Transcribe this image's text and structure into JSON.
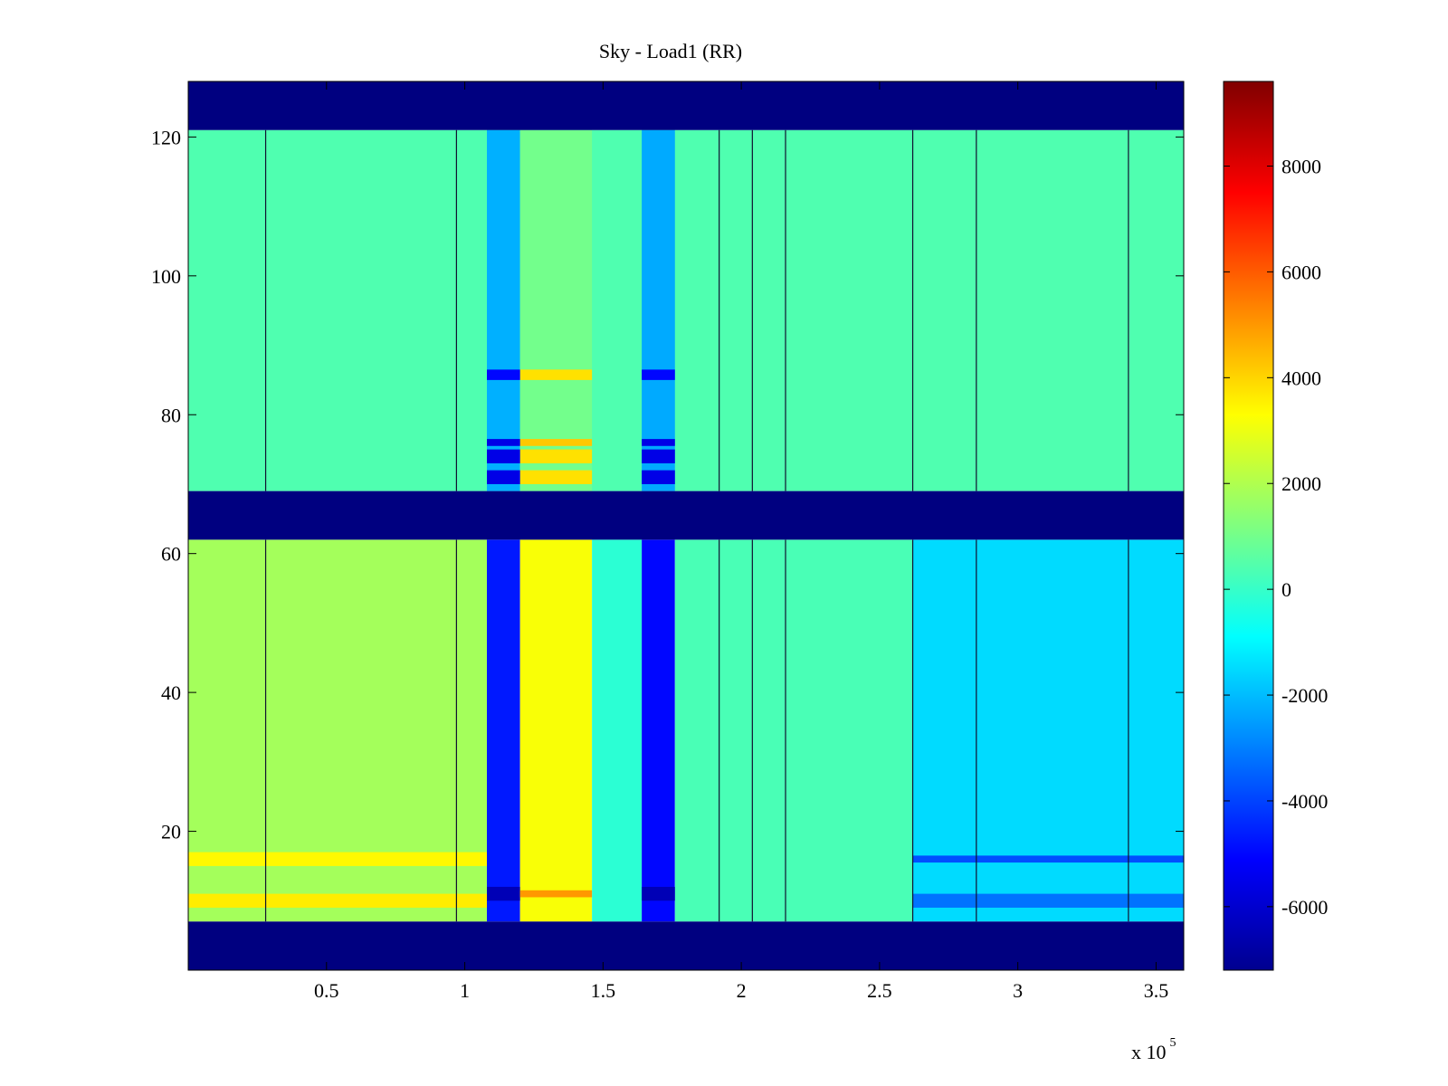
{
  "chart_data": {
    "type": "heatmap",
    "title": "Sky - Load1 (RR)",
    "xlabel": "",
    "ylabel": "",
    "x_exponent_label": "x 10",
    "x_exponent_power": "5",
    "xlim": [
      0,
      3.6
    ],
    "ylim": [
      0,
      128
    ],
    "x_ticks": [
      0.5,
      1,
      1.5,
      2,
      2.5,
      3,
      3.5
    ],
    "x_tick_labels": [
      "0.5",
      "1",
      "1.5",
      "2",
      "2.5",
      "3",
      "3.5"
    ],
    "y_ticks": [
      20,
      40,
      60,
      80,
      100,
      120
    ],
    "y_tick_labels": [
      "20",
      "40",
      "60",
      "80",
      "100",
      "120"
    ],
    "colormap": "jet",
    "colorbar": {
      "range": [
        -7200,
        9600
      ],
      "ticks": [
        -6000,
        -4000,
        -2000,
        0,
        2000,
        4000,
        6000,
        8000
      ],
      "tick_labels": [
        "-6000",
        "-4000",
        "-2000",
        "0",
        "2000",
        "4000",
        "6000",
        "8000"
      ]
    },
    "masked_row_bands": [
      [
        0,
        7
      ],
      [
        62,
        69
      ],
      [
        121,
        128
      ]
    ],
    "regions": [
      {
        "x": [
          0,
          1.08
        ],
        "y": [
          7,
          62
        ],
        "level": 1800
      },
      {
        "x": [
          1.08,
          1.2
        ],
        "y": [
          7,
          62
        ],
        "level": -4700
      },
      {
        "x": [
          1.2,
          1.46
        ],
        "y": [
          7,
          62
        ],
        "level": 3200
      },
      {
        "x": [
          1.46,
          1.64
        ],
        "y": [
          7,
          62
        ],
        "level": -200
      },
      {
        "x": [
          1.64,
          1.76
        ],
        "y": [
          7,
          62
        ],
        "level": -5000
      },
      {
        "x": [
          1.76,
          2.62
        ],
        "y": [
          7,
          62
        ],
        "level": 300
      },
      {
        "x": [
          2.62,
          3.6
        ],
        "y": [
          7,
          62
        ],
        "level": -1500
      },
      {
        "x": [
          0,
          3.6
        ],
        "y": [
          69,
          121
        ],
        "level": 400
      },
      {
        "x": [
          1.08,
          1.2
        ],
        "y": [
          69,
          121
        ],
        "level": -2200
      },
      {
        "x": [
          1.2,
          1.46
        ],
        "y": [
          69,
          121
        ],
        "level": 1000
      },
      {
        "x": [
          1.64,
          1.76
        ],
        "y": [
          69,
          121
        ],
        "level": -2300
      }
    ],
    "bright_rows": [
      {
        "y": [
          9,
          11
        ],
        "x": [
          0,
          1.08
        ],
        "level": 3600
      },
      {
        "y": [
          15,
          17
        ],
        "x": [
          0,
          1.08
        ],
        "level": 3400
      },
      {
        "y": [
          10,
          12
        ],
        "x": [
          1.08,
          1.2
        ],
        "level": -6300
      },
      {
        "y": [
          10,
          12
        ],
        "x": [
          1.64,
          1.76
        ],
        "level": -6300
      },
      {
        "y": [
          10.5,
          11.5
        ],
        "x": [
          1.2,
          1.46
        ],
        "level": 5000
      },
      {
        "y": [
          15.5,
          16.5
        ],
        "x": [
          2.62,
          3.6
        ],
        "level": -3800
      },
      {
        "y": [
          9,
          11
        ],
        "x": [
          2.62,
          3.6
        ],
        "level": -3200
      },
      {
        "y": [
          70,
          72
        ],
        "x": [
          1.2,
          1.46
        ],
        "level": 3800
      },
      {
        "y": [
          73,
          75
        ],
        "x": [
          1.2,
          1.46
        ],
        "level": 3800
      },
      {
        "y": [
          75.5,
          76.5
        ],
        "x": [
          1.2,
          1.46
        ],
        "level": 4200
      },
      {
        "y": [
          85,
          86.5
        ],
        "x": [
          1.2,
          1.46
        ],
        "level": 3800
      },
      {
        "y": [
          70,
          72
        ],
        "x": [
          1.08,
          1.2
        ],
        "level": -5500
      },
      {
        "y": [
          73,
          75
        ],
        "x": [
          1.08,
          1.2
        ],
        "level": -5500
      },
      {
        "y": [
          75.5,
          76.5
        ],
        "x": [
          1.08,
          1.2
        ],
        "level": -5500
      },
      {
        "y": [
          85,
          86.5
        ],
        "x": [
          1.08,
          1.2
        ],
        "level": -5000
      },
      {
        "y": [
          70,
          72
        ],
        "x": [
          1.64,
          1.76
        ],
        "level": -5500
      },
      {
        "y": [
          73,
          75
        ],
        "x": [
          1.64,
          1.76
        ],
        "level": -5500
      },
      {
        "y": [
          75.5,
          76.5
        ],
        "x": [
          1.64,
          1.76
        ],
        "level": -5500
      },
      {
        "y": [
          85,
          86.5
        ],
        "x": [
          1.64,
          1.76
        ],
        "level": -5000
      }
    ],
    "dark_vertical_lines_x": [
      0.28,
      0.97,
      1.92,
      2.04,
      2.16,
      2.62,
      2.85,
      3.4
    ]
  }
}
